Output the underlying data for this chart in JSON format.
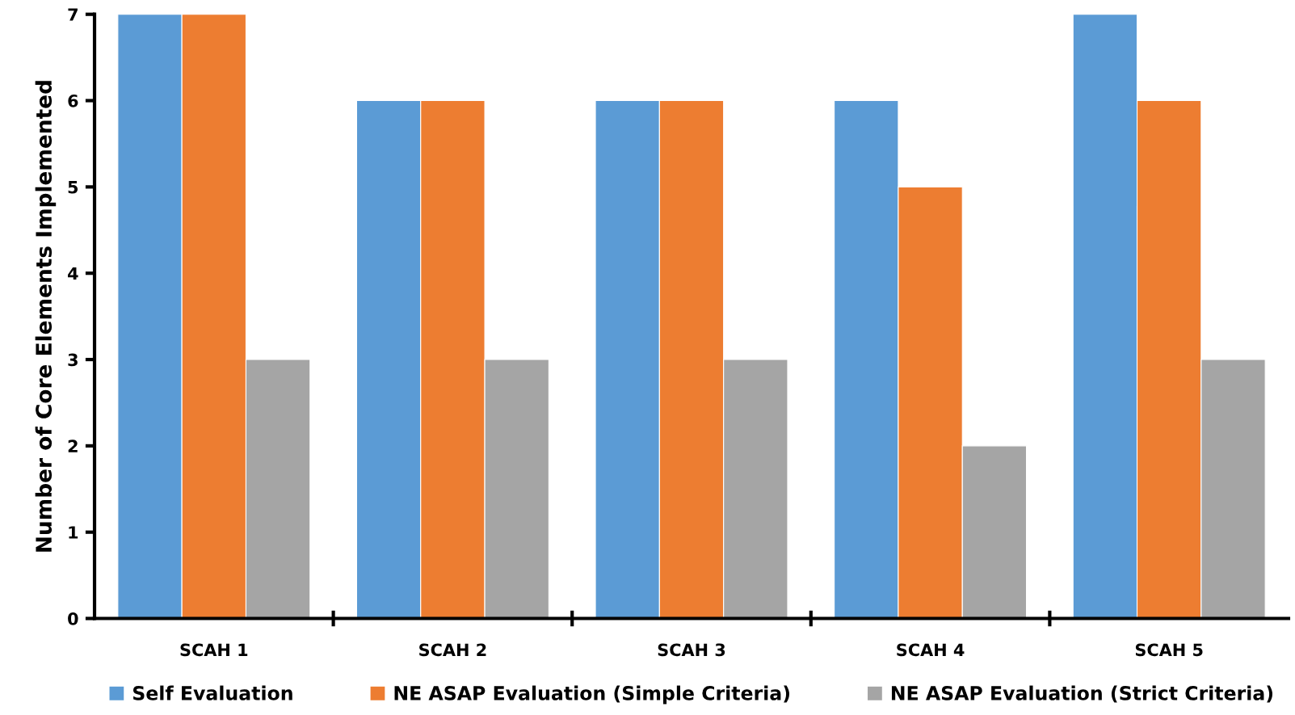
{
  "chart_data": {
    "type": "bar",
    "ylabel": "Number of Core Elements Implemented",
    "categories": [
      "SCAH 1",
      "SCAH 2",
      "SCAH 3",
      "SCAH 4",
      "SCAH 5"
    ],
    "series": [
      {
        "name": "Self Evaluation",
        "color": "#5b9bd5",
        "values": [
          7,
          6,
          6,
          6,
          7
        ]
      },
      {
        "name": "NE ASAP Evaluation (Simple Criteria)",
        "color": "#ed7d31",
        "values": [
          7,
          6,
          6,
          5,
          6
        ]
      },
      {
        "name": "NE ASAP Evaluation (Strict Criteria)",
        "color": "#a5a5a5",
        "values": [
          3,
          3,
          3,
          2,
          3
        ]
      }
    ],
    "ylim": [
      0,
      7
    ],
    "yticks": [
      0,
      1,
      2,
      3,
      4,
      5,
      6,
      7
    ],
    "grid": false,
    "legend": "bottom"
  }
}
